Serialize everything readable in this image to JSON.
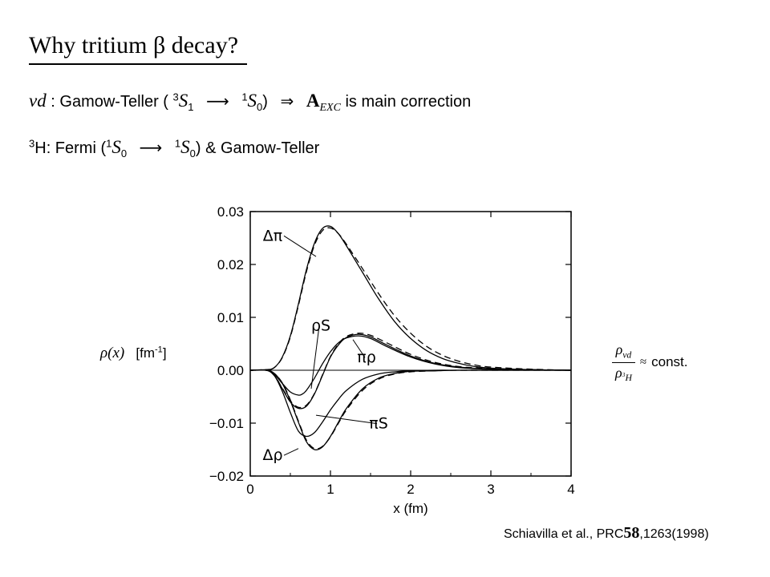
{
  "slide": {
    "title": "Why tritium β decay?",
    "line1": {
      "process": "νd",
      "colon_label": ": Gamow-Teller (",
      "initial_state": "S",
      "initial_sup": "3",
      "initial_sub": "1",
      "final_state": "S",
      "final_sup": "1",
      "final_sub": "0",
      "close": ")",
      "implies": "⇒",
      "correction_symbol": "A",
      "correction_sub": "EXC",
      "tail": "is main correction"
    },
    "line2": {
      "nucleus_sup": "3",
      "nucleus": "H",
      "label": ": Fermi (",
      "initial_state": "S",
      "initial_sup": "1",
      "initial_sub": "0",
      "final_state": "S",
      "final_sup": "1",
      "final_sub": "0",
      "tail": ") & Gamow-Teller"
    },
    "y_label": {
      "rho": "ρ(x)",
      "unit_pre": "[fm",
      "unit_sup": "-1",
      "unit_post": "]"
    },
    "ratio_note": {
      "numerator": "ρ",
      "numerator_sub": "νd",
      "denominator": "ρ",
      "denominator_sub_sup": "3",
      "denominator_sub": "H",
      "approx": "≈",
      "const": "const."
    },
    "citation": {
      "text1": "Schiavilla et al., PRC",
      "volume": "58",
      "text2": ",1263(1998)"
    }
  },
  "chart_data": {
    "type": "line",
    "xlabel": "x (fm)",
    "ylabel": "",
    "xlim": [
      0,
      4
    ],
    "ylim": [
      -0.02,
      0.03
    ],
    "xticks": [
      "0",
      "1",
      "2",
      "3",
      "4"
    ],
    "yticks": [
      "0.03",
      "0.02",
      "0.01",
      "0.00",
      "−0.01",
      "−0.02"
    ],
    "grid": false,
    "zero_line": true,
    "series": [
      {
        "name": "Δπ",
        "style": "solid",
        "x": [
          0,
          0.2,
          0.3,
          0.4,
          0.5,
          0.6,
          0.7,
          0.8,
          0.9,
          1.0,
          1.1,
          1.2,
          1.4,
          1.6,
          1.8,
          2.0,
          2.2,
          2.4,
          2.6,
          2.8,
          3.0,
          3.5,
          4.0
        ],
        "y": [
          0,
          0.0001,
          0.0005,
          0.0025,
          0.0065,
          0.0125,
          0.019,
          0.024,
          0.0268,
          0.0272,
          0.0258,
          0.0235,
          0.0185,
          0.0135,
          0.0092,
          0.006,
          0.0037,
          0.0022,
          0.0013,
          0.0007,
          0.0004,
          0.0001,
          0
        ]
      },
      {
        "name": "Δπ",
        "style": "dashed",
        "x": [
          0,
          0.2,
          0.3,
          0.4,
          0.5,
          0.6,
          0.7,
          0.8,
          0.9,
          1.0,
          1.1,
          1.2,
          1.4,
          1.6,
          1.8,
          2.0,
          2.2,
          2.4,
          2.6,
          2.8,
          3.0,
          3.5,
          4.0
        ],
        "y": [
          0,
          0.0001,
          0.0005,
          0.0024,
          0.0063,
          0.0122,
          0.0186,
          0.0236,
          0.0264,
          0.0269,
          0.0258,
          0.0238,
          0.0192,
          0.0145,
          0.0103,
          0.007,
          0.0045,
          0.0028,
          0.0017,
          0.001,
          0.0006,
          0.0002,
          0
        ]
      },
      {
        "name": "ρS",
        "style": "solid",
        "x": [
          0,
          0.2,
          0.3,
          0.4,
          0.5,
          0.6,
          0.65,
          0.7,
          0.8,
          0.9,
          1.0,
          1.1,
          1.2,
          1.35,
          1.5,
          1.7,
          2.0,
          2.3,
          2.6,
          3.0,
          3.5,
          4.0
        ],
        "y": [
          0,
          0,
          -0.0008,
          -0.0025,
          -0.0041,
          -0.0047,
          -0.0045,
          -0.0038,
          -0.0015,
          0.0012,
          0.0035,
          0.0052,
          0.0061,
          0.0065,
          0.006,
          0.0045,
          0.0025,
          0.0012,
          0.0005,
          0.0002,
          0.0001,
          0
        ]
      },
      {
        "name": "πρ",
        "style": "solid",
        "x": [
          0,
          0.2,
          0.3,
          0.4,
          0.5,
          0.6,
          0.7,
          0.8,
          0.9,
          1.0,
          1.1,
          1.2,
          1.35,
          1.5,
          1.7,
          2.0,
          2.3,
          2.6,
          3.0,
          3.5,
          4.0
        ],
        "y": [
          0,
          0,
          -0.001,
          -0.0035,
          -0.006,
          -0.0072,
          -0.0068,
          -0.0045,
          -0.001,
          0.0025,
          0.0048,
          0.0062,
          0.0068,
          0.0063,
          0.0048,
          0.0027,
          0.0013,
          0.0006,
          0.0002,
          0.0001,
          0
        ]
      },
      {
        "name": "πρ",
        "style": "dashed",
        "x": [
          0,
          0.2,
          0.3,
          0.4,
          0.5,
          0.6,
          0.7,
          0.8,
          0.9,
          1.0,
          1.1,
          1.2,
          1.35,
          1.5,
          1.7,
          2.0,
          2.3,
          2.6,
          3.0,
          3.5,
          4.0
        ],
        "y": [
          0,
          0,
          -0.001,
          -0.0034,
          -0.0058,
          -0.007,
          -0.0066,
          -0.0044,
          -0.0009,
          0.0026,
          0.005,
          0.0064,
          0.007,
          0.0066,
          0.0052,
          0.003,
          0.0015,
          0.0007,
          0.0003,
          0.0001,
          0
        ]
      },
      {
        "name": "πS",
        "style": "solid",
        "x": [
          0,
          0.2,
          0.3,
          0.4,
          0.5,
          0.6,
          0.7,
          0.8,
          0.9,
          1.0,
          1.1,
          1.2,
          1.4,
          1.6,
          1.8,
          2.0,
          2.3,
          2.6,
          3.0,
          3.5,
          4.0
        ],
        "y": [
          0,
          0,
          -0.001,
          -0.004,
          -0.008,
          -0.0115,
          -0.0125,
          -0.0118,
          -0.0098,
          -0.0075,
          -0.0055,
          -0.0038,
          -0.0017,
          -0.0007,
          -0.0003,
          -0.0001,
          0,
          0,
          0,
          0,
          0
        ]
      },
      {
        "name": "Δρ",
        "style": "solid",
        "x": [
          0,
          0.2,
          0.3,
          0.4,
          0.5,
          0.6,
          0.7,
          0.8,
          0.9,
          1.0,
          1.1,
          1.2,
          1.4,
          1.6,
          1.8,
          2.0,
          2.3,
          2.6,
          3.0,
          3.5,
          4.0
        ],
        "y": [
          0,
          0,
          -0.0006,
          -0.0025,
          -0.0058,
          -0.0098,
          -0.0135,
          -0.015,
          -0.0145,
          -0.0125,
          -0.0098,
          -0.0072,
          -0.0035,
          -0.0015,
          -0.0006,
          -0.0002,
          -0.0001,
          0,
          0,
          0,
          0
        ]
      },
      {
        "name": "Δρ",
        "style": "dashed",
        "x": [
          0,
          0.2,
          0.3,
          0.4,
          0.5,
          0.6,
          0.7,
          0.8,
          0.9,
          1.0,
          1.1,
          1.2,
          1.4,
          1.6,
          1.8,
          2.0,
          2.3,
          2.6,
          3.0,
          3.5,
          4.0
        ],
        "y": [
          0,
          0,
          -0.0006,
          -0.0024,
          -0.0056,
          -0.0096,
          -0.0132,
          -0.0148,
          -0.0144,
          -0.0126,
          -0.01,
          -0.0075,
          -0.0038,
          -0.0017,
          -0.0007,
          -0.0003,
          -0.0001,
          0,
          0,
          0,
          0
        ]
      }
    ],
    "annotations": [
      {
        "text": "Δπ",
        "x": 0.28,
        "y": 0.0245,
        "to_x": 0.82,
        "to_y": 0.0215
      },
      {
        "text": "ρS",
        "x": 0.88,
        "y": 0.0075,
        "to_x": 0.76,
        "to_y": -0.0035
      },
      {
        "text": "πρ",
        "x": 1.45,
        "y": 0.0015,
        "to_x": 1.28,
        "to_y": 0.0058
      },
      {
        "text": "πS",
        "x": 1.6,
        "y": -0.011,
        "to_x": 0.82,
        "to_y": -0.0085
      },
      {
        "text": "Δρ",
        "x": 0.28,
        "y": -0.017,
        "to_x": 0.6,
        "to_y": -0.0148
      }
    ]
  }
}
